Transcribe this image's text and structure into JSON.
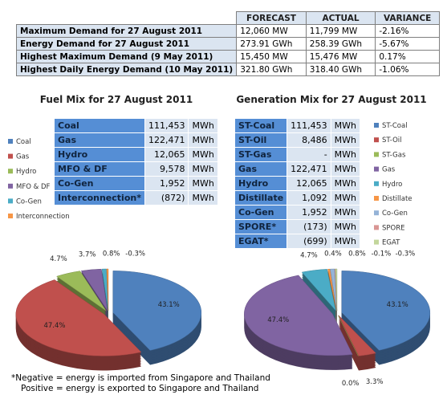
{
  "summary_table": {
    "headers": [
      "FORECAST",
      "ACTUAL",
      "VARIANCE"
    ],
    "rows": [
      [
        "Maximum Demand for 27 August 2011",
        "12,060 MW",
        "11,799 MW",
        "-2.16%"
      ],
      [
        "Energy Demand for 27 August 2011",
        "273.91 GWh",
        "258.39 GWh",
        "-5.67%"
      ],
      [
        "Highest Maximum Demand (9 May 2011)",
        "15,450 MW",
        "15,476 MW",
        "0.17%"
      ],
      [
        "Highest Daily Energy Demand (10 May 2011)",
        "321.80 GWh",
        "318.40 GWh",
        "-1.06%"
      ]
    ]
  },
  "fuel_table": {
    "rows": [
      [
        "Coal",
        "111,453",
        "MWh"
      ],
      [
        "Gas",
        "122,471",
        "MWh"
      ],
      [
        "Hydro",
        "12,065",
        "MWh"
      ],
      [
        "MFO & DF",
        "9,578",
        "MWh"
      ],
      [
        "Co-Gen",
        "1,952",
        "MWh"
      ],
      [
        "Interconnection*",
        "(872)",
        "MWh"
      ]
    ]
  },
  "generation_table": {
    "rows": [
      [
        "ST-Coal",
        "111,453",
        "MWh"
      ],
      [
        "ST-Oil",
        "8,486",
        "MWh"
      ],
      [
        "ST-Gas",
        "-",
        "MWh"
      ],
      [
        "Gas",
        "122,471",
        "MWh"
      ],
      [
        "Hydro",
        "12,065",
        "MWh"
      ],
      [
        "Distillate",
        "1,092",
        "MWh"
      ],
      [
        "Co-Gen",
        "1,952",
        "MWh"
      ],
      [
        "SPORE*",
        "(173)",
        "MWh"
      ],
      [
        "EGAT*",
        "(699)",
        "MWh"
      ]
    ]
  },
  "chart_data": [
    {
      "type": "pie",
      "title": "Fuel Mix for 27 August 2011",
      "categories": [
        "Coal",
        "Gas",
        "Hydro",
        "MFO & DF",
        "Co-Gen",
        "Interconnection"
      ],
      "values": [
        43.1,
        47.4,
        4.7,
        3.7,
        0.8,
        -0.3
      ],
      "value_labels": [
        "43.1%",
        "47.4%",
        "4.7%",
        "3.7%",
        "0.8%",
        "-0.3%"
      ],
      "colors": [
        "#4f81bd",
        "#c0504d",
        "#9bbb59",
        "#8064a2",
        "#4bacc6",
        "#f79646"
      ]
    },
    {
      "type": "pie",
      "title": "Generation Mix for 27 August 2011",
      "categories": [
        "ST-Coal",
        "ST-Oil",
        "ST-Gas",
        "Gas",
        "Hydro",
        "Distillate",
        "Co-Gen",
        "SPORE",
        "EGAT"
      ],
      "values": [
        43.1,
        3.3,
        0.0,
        47.4,
        4.7,
        0.4,
        0.8,
        -0.1,
        -0.3
      ],
      "value_labels": [
        "43.1%",
        "3.3%",
        "0.0%",
        "47.4%",
        "4.7%",
        "0.4%",
        "0.8%",
        "-0.1%",
        "-0.3%"
      ],
      "colors": [
        "#4f81bd",
        "#c0504d",
        "#9bbb59",
        "#8064a2",
        "#4bacc6",
        "#f79646",
        "#95b3d7",
        "#d99694",
        "#c3d69b"
      ]
    }
  ],
  "footnote": [
    "*Negative = energy is imported from Singapore and Thailand",
    "Positive = energy is exported to Singapore and Thailand"
  ]
}
